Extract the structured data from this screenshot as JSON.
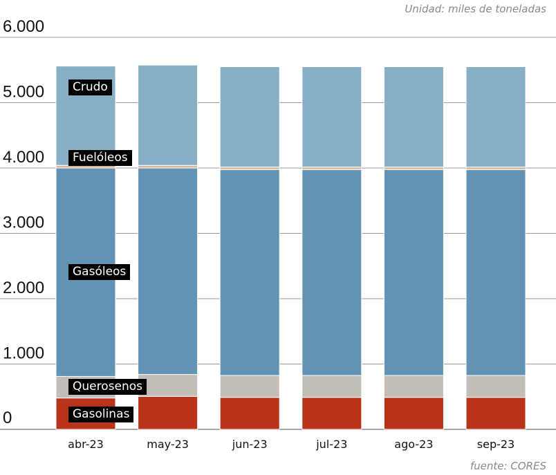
{
  "unit_note": "Unidad: miles de toneladas",
  "source_note": "fuente: CORES",
  "colors": {
    "Gasolinas": "#b83319",
    "Querosenos": "#c2bdb6",
    "Gasóleos": "#6393b2",
    "Fuelóleos": "#d9b99b",
    "Crudo": "#87afc7"
  },
  "chart_data": {
    "type": "bar",
    "stacked": true,
    "categories": [
      "abr-23",
      "may-23",
      "jun-23",
      "jul-23",
      "ago-23",
      "sep-23"
    ],
    "ylim": [
      0,
      6000
    ],
    "yticks": [
      0,
      1000,
      2000,
      3000,
      4000,
      5000,
      6000
    ],
    "ytick_labels": [
      "0",
      "1.000",
      "2.000",
      "3.000",
      "4.000",
      "5.000",
      "6.000"
    ],
    "grid": true,
    "legend": "inline-labels-on-first-bar",
    "series": [
      {
        "name": "Gasolinas",
        "values": [
          480,
          505,
          490,
          490,
          490,
          490
        ]
      },
      {
        "name": "Querosenos",
        "values": [
          330,
          335,
          335,
          335,
          335,
          335
        ]
      },
      {
        "name": "Gasóleos",
        "values": [
          3190,
          3160,
          3150,
          3150,
          3150,
          3150
        ]
      },
      {
        "name": "Fuelóleos",
        "values": [
          40,
          40,
          40,
          40,
          40,
          40
        ]
      },
      {
        "name": "Crudo",
        "values": [
          1520,
          1535,
          1535,
          1535,
          1535,
          1535
        ]
      }
    ]
  }
}
